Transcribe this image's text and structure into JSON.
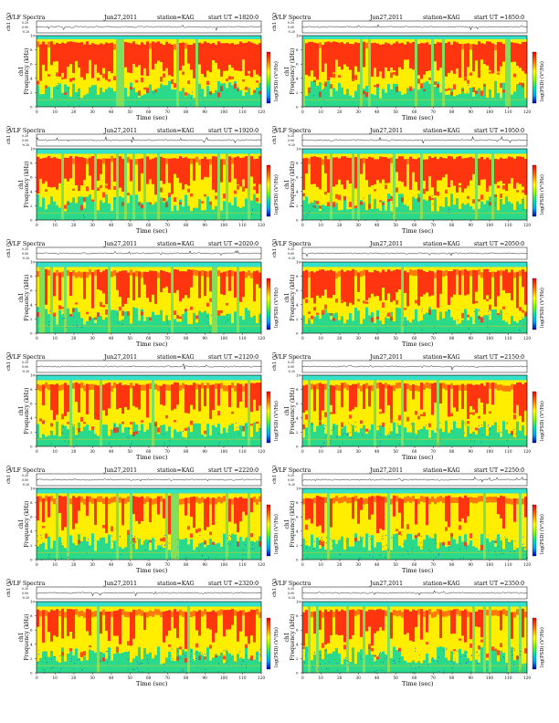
{
  "colors": {
    "background": "#00b4a8",
    "band_low": "#2bd98a",
    "band_mid": "#ffee00",
    "band_high": "#ff2a10",
    "colorbar": [
      "#ff0000",
      "#ff7a00",
      "#ffff00",
      "#7cfc00",
      "#00e0a0",
      "#00a0ff",
      "#0000c0"
    ]
  },
  "figure": {
    "header_left": "VLF Spectra",
    "date": "Jun27,2011",
    "station": "station=KAG",
    "start_prefix": "start  UT =",
    "ch_label": "ch1 (V)",
    "ch_ticks": [
      "0.20",
      "0.00",
      "-0.20"
    ],
    "ylabel": "ch1",
    "ylabel_sub": "Frequency (kHz)",
    "colorbar_label": "log(PSD) (V²/Hz)",
    "xlabel": "Time (sec)"
  },
  "chart_data": [
    {
      "type": "heatmap",
      "start_ut": "1820:0",
      "x_range": [
        0,
        120
      ],
      "y_range": [
        0,
        10
      ],
      "band_top_khz": 9.5,
      "intensity": 0.92,
      "low_noise": 0.05
    },
    {
      "type": "heatmap",
      "start_ut": "1850:0",
      "x_range": [
        0,
        120
      ],
      "y_range": [
        0,
        10
      ],
      "band_top_khz": 9.5,
      "intensity": 0.92,
      "low_noise": 0.05
    },
    {
      "type": "heatmap",
      "start_ut": "1920:0",
      "x_range": [
        0,
        120
      ],
      "y_range": [
        0,
        10
      ],
      "band_top_khz": 9.3,
      "intensity": 0.85,
      "low_noise": 0.1
    },
    {
      "type": "heatmap",
      "start_ut": "1950:0",
      "x_range": [
        0,
        120
      ],
      "y_range": [
        0,
        10
      ],
      "band_top_khz": 9.3,
      "intensity": 0.85,
      "low_noise": 0.1
    },
    {
      "type": "heatmap",
      "start_ut": "2020:0",
      "x_range": [
        0,
        120
      ],
      "y_range": [
        0,
        10
      ],
      "band_top_khz": 9.3,
      "intensity": 0.7,
      "low_noise": 0.2
    },
    {
      "type": "heatmap",
      "start_ut": "2050:0",
      "x_range": [
        0,
        120
      ],
      "y_range": [
        0,
        10
      ],
      "band_top_khz": 9.3,
      "intensity": 0.65,
      "low_noise": 0.25
    },
    {
      "type": "heatmap",
      "start_ut": "2120:0",
      "x_range": [
        0,
        120
      ],
      "y_range": [
        0,
        10
      ],
      "band_top_khz": 9.3,
      "intensity": 0.55,
      "low_noise": 0.3
    },
    {
      "type": "heatmap",
      "start_ut": "2150:0",
      "x_range": [
        0,
        120
      ],
      "y_range": [
        0,
        10
      ],
      "band_top_khz": 9.3,
      "intensity": 0.55,
      "low_noise": 0.3
    },
    {
      "type": "heatmap",
      "start_ut": "2220:0",
      "x_range": [
        0,
        120
      ],
      "y_range": [
        0,
        10
      ],
      "band_top_khz": 9.3,
      "intensity": 0.5,
      "low_noise": 0.35
    },
    {
      "type": "heatmap",
      "start_ut": "2250:0",
      "x_range": [
        0,
        120
      ],
      "y_range": [
        0,
        10
      ],
      "band_top_khz": 9.3,
      "intensity": 0.45,
      "low_noise": 0.45
    },
    {
      "type": "heatmap",
      "start_ut": "2320:0",
      "x_range": [
        0,
        120
      ],
      "y_range": [
        0,
        10
      ],
      "band_top_khz": 9.3,
      "intensity": 0.5,
      "low_noise": 0.55
    },
    {
      "type": "heatmap",
      "start_ut": "2350:0",
      "x_range": [
        0,
        120
      ],
      "y_range": [
        0,
        10
      ],
      "band_top_khz": 9.3,
      "intensity": 0.5,
      "low_noise": 0.55
    }
  ]
}
